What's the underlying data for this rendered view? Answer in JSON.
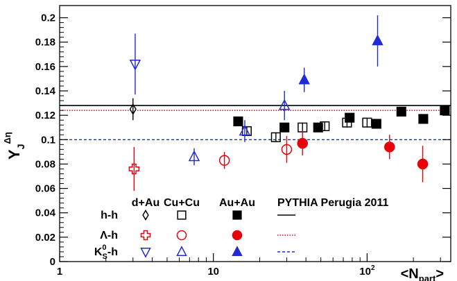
{
  "chart_data": {
    "type": "scatter",
    "title": "",
    "xlabel": "<N",
    "xlabel_sub": "part",
    "xlabel_close": ">",
    "ylabel": "Y",
    "ylabel_sub": "J",
    "ylabel_sup": "Δη",
    "x_scale": "log",
    "xlim": [
      1,
      350
    ],
    "ylim": [
      0,
      0.21
    ],
    "grid": false,
    "x_ticks": [
      {
        "value": 1,
        "label": "1"
      },
      {
        "value": 10,
        "label": "10"
      },
      {
        "value": 100,
        "label": "10",
        "sup": "2"
      }
    ],
    "y_ticks": [
      {
        "value": 0,
        "label": "0"
      },
      {
        "value": 0.02,
        "label": "0.02"
      },
      {
        "value": 0.04,
        "label": "0.04"
      },
      {
        "value": 0.06,
        "label": "0.06"
      },
      {
        "value": 0.08,
        "label": "0.08"
      },
      {
        "value": 0.1,
        "label": "0.1"
      },
      {
        "value": 0.12,
        "label": "0.12"
      },
      {
        "value": 0.14,
        "label": "0.14"
      },
      {
        "value": 0.16,
        "label": "0.16"
      },
      {
        "value": 0.18,
        "label": "0.18"
      },
      {
        "value": 0.2,
        "label": "0.2"
      }
    ],
    "legend": {
      "placement": "bottom-left",
      "column_headers": [
        "d+Au",
        "Cu+Cu",
        "Au+Au",
        "PYTHIA Perugia 2011"
      ],
      "row_labels": [
        {
          "main": "h-h"
        },
        {
          "main": "Λ-h"
        },
        {
          "main": "K",
          "sup": "0",
          "sub": "S",
          "suffix": "-h"
        }
      ]
    },
    "reference_lines": [
      {
        "name": "h-h",
        "y": 0.128,
        "color": "#000000",
        "style": "solid"
      },
      {
        "name": "Λ-h",
        "y": 0.124,
        "color": "#e8000b",
        "style": "dotted"
      },
      {
        "name": "K0S-h",
        "y": 0.1,
        "color": "#1f2bd4",
        "style": "dashed"
      }
    ],
    "series": [
      {
        "name": "h-h",
        "system": "d+Au",
        "marker": "diamond-open",
        "color": "#000000",
        "points": [
          {
            "x": 3.0,
            "y": 0.125,
            "err": 0.009
          }
        ]
      },
      {
        "name": "h-h",
        "system": "Cu+Cu",
        "marker": "square-open",
        "color": "#000000",
        "points": [
          {
            "x": 16.5,
            "y": 0.107,
            "err": 0.004
          },
          {
            "x": 25.5,
            "y": 0.102,
            "err": 0.004
          },
          {
            "x": 38,
            "y": 0.11,
            "err": 0.004
          },
          {
            "x": 53,
            "y": 0.111,
            "err": 0.004
          },
          {
            "x": 74,
            "y": 0.114,
            "err": 0.004
          },
          {
            "x": 100,
            "y": 0.114,
            "err": 0.004
          }
        ]
      },
      {
        "name": "h-h",
        "system": "Au+Au",
        "marker": "square-filled",
        "color": "#000000",
        "points": [
          {
            "x": 14.5,
            "y": 0.115,
            "err": 0.003
          },
          {
            "x": 29,
            "y": 0.11,
            "err": 0.003
          },
          {
            "x": 48,
            "y": 0.11,
            "err": 0.003
          },
          {
            "x": 77,
            "y": 0.118,
            "err": 0.003
          },
          {
            "x": 115,
            "y": 0.113,
            "err": 0.003
          },
          {
            "x": 167,
            "y": 0.123,
            "err": 0.003
          },
          {
            "x": 232,
            "y": 0.117,
            "err": 0.003
          },
          {
            "x": 320,
            "y": 0.124,
            "err": 0.003
          }
        ]
      },
      {
        "name": "Λ-h",
        "system": "d+Au",
        "marker": "cross-open",
        "color": "#e8000b",
        "points": [
          {
            "x": 3.05,
            "y": 0.076,
            "err": 0.018
          }
        ]
      },
      {
        "name": "Λ-h",
        "system": "Cu+Cu",
        "marker": "circle-open",
        "color": "#e8000b",
        "points": [
          {
            "x": 11.8,
            "y": 0.083,
            "err": 0.007
          },
          {
            "x": 30,
            "y": 0.092,
            "err": 0.011
          }
        ]
      },
      {
        "name": "Λ-h",
        "system": "Au+Au",
        "marker": "circle-filled",
        "color": "#e8000b",
        "points": [
          {
            "x": 38,
            "y": 0.097,
            "err": 0.01
          },
          {
            "x": 140,
            "y": 0.094,
            "err": 0.01
          },
          {
            "x": 230,
            "y": 0.08,
            "err": 0.015
          }
        ]
      },
      {
        "name": "K0S-h",
        "system": "d+Au",
        "marker": "triangle-down-open",
        "color": "#1f2bd4",
        "points": [
          {
            "x": 3.1,
            "y": 0.162,
            "err": 0.025
          }
        ]
      },
      {
        "name": "K0S-h",
        "system": "Cu+Cu",
        "marker": "triangle-up-open",
        "color": "#1f2bd4",
        "points": [
          {
            "x": 7.5,
            "y": 0.086,
            "err": 0.007
          },
          {
            "x": 16,
            "y": 0.107,
            "err": 0.009
          },
          {
            "x": 29,
            "y": 0.128,
            "err": 0.012
          }
        ]
      },
      {
        "name": "K0S-h",
        "system": "Au+Au",
        "marker": "triangle-up-filled",
        "color": "#1f2bd4",
        "points": [
          {
            "x": 39,
            "y": 0.149,
            "err": 0.01
          },
          {
            "x": 117,
            "y": 0.181,
            "err": 0.021
          }
        ]
      }
    ]
  }
}
